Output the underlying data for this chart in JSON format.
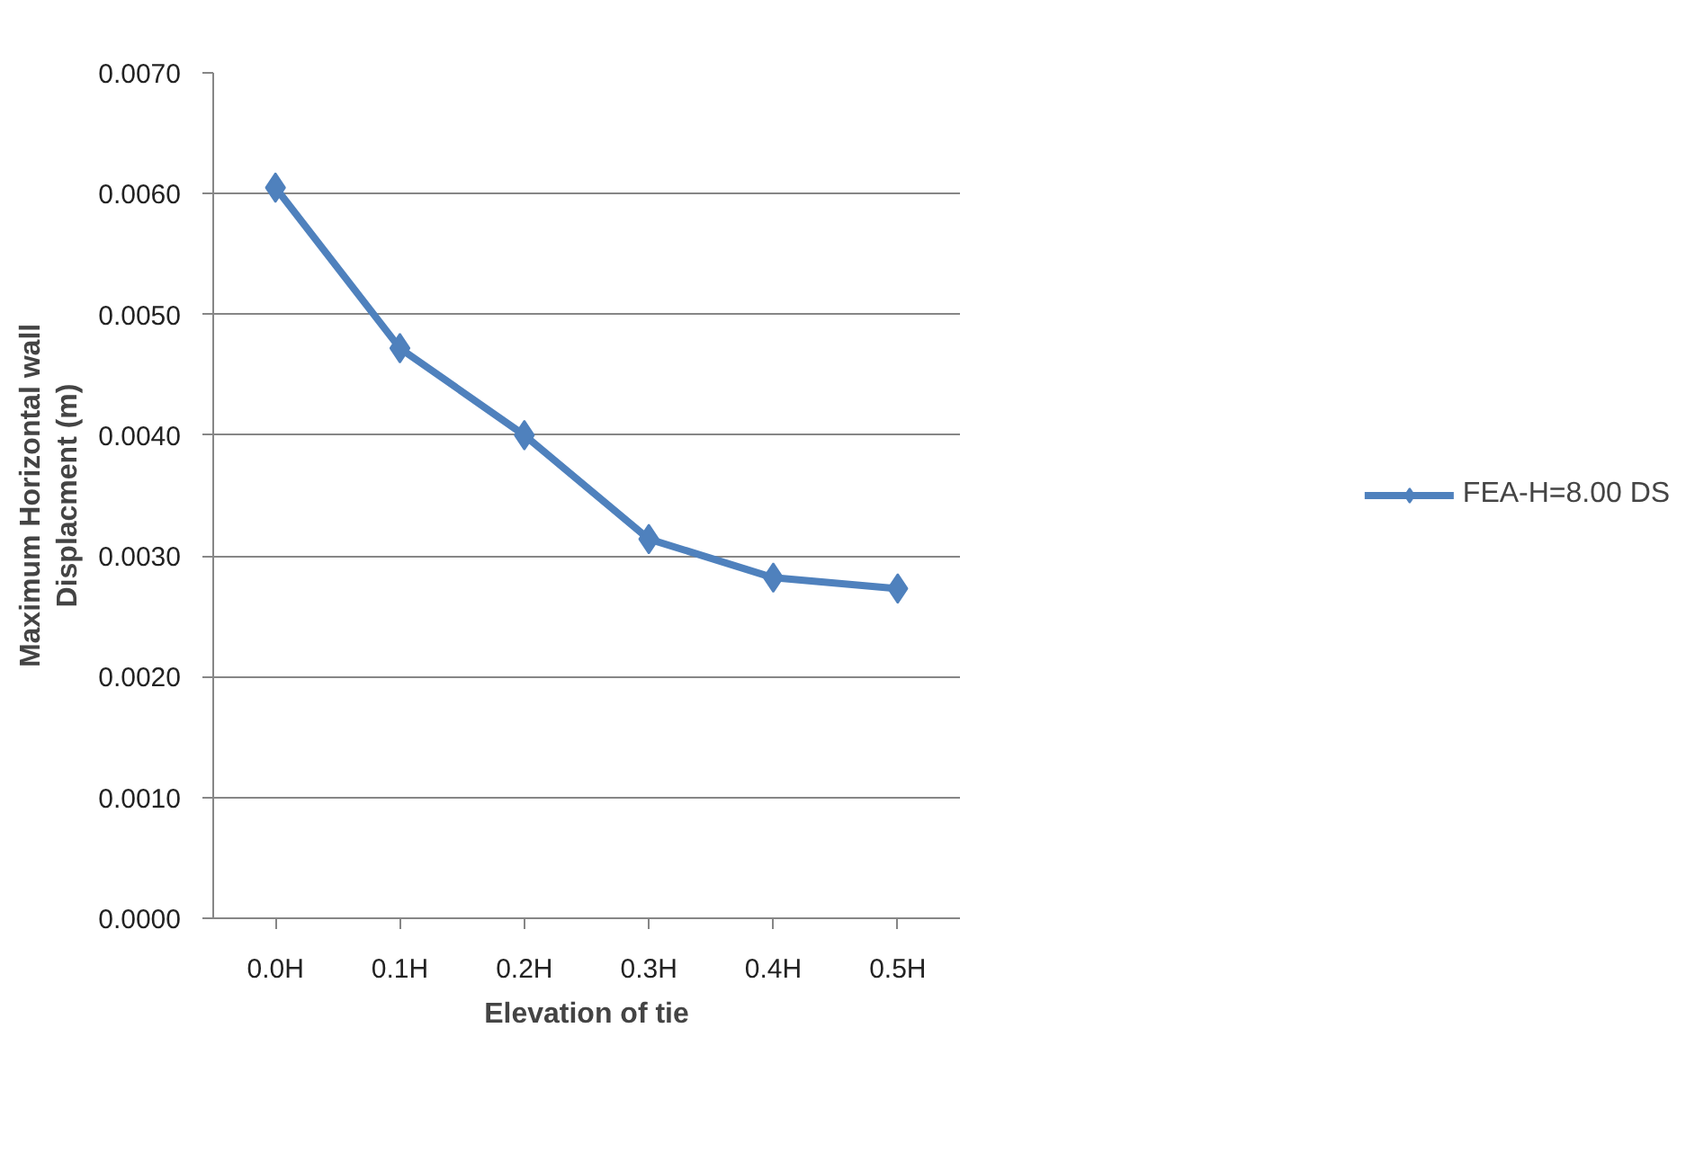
{
  "chart_data": {
    "type": "line",
    "xlabel": "Elevation of tie",
    "ylabel": "Maximum Horizontal wall\nDisplacment (m)",
    "categories": [
      "0.0H",
      "0.1H",
      "0.2H",
      "0.3H",
      "0.4H",
      "0.5H"
    ],
    "series": [
      {
        "name": "FEA-H=8.00 DS",
        "color": "#4f81bd",
        "values": [
          0.00605,
          0.00472,
          0.004,
          0.00314,
          0.00282,
          0.00273
        ]
      }
    ],
    "ylim": [
      0,
      0.007
    ],
    "yticks": [
      {
        "value": 0,
        "label": "0.0000"
      },
      {
        "value": 0.001,
        "label": "0.0010"
      },
      {
        "value": 0.002,
        "label": "0.0020"
      },
      {
        "value": 0.003,
        "label": "0.0030"
      },
      {
        "value": 0.004,
        "label": "0.0040"
      },
      {
        "value": 0.005,
        "label": "0.0050"
      },
      {
        "value": 0.006,
        "label": "0.0060"
      },
      {
        "value": 0.007,
        "label": "0.0070"
      }
    ],
    "grid": "y",
    "legend": "right",
    "marker": "diamond",
    "line_style": "solid"
  }
}
